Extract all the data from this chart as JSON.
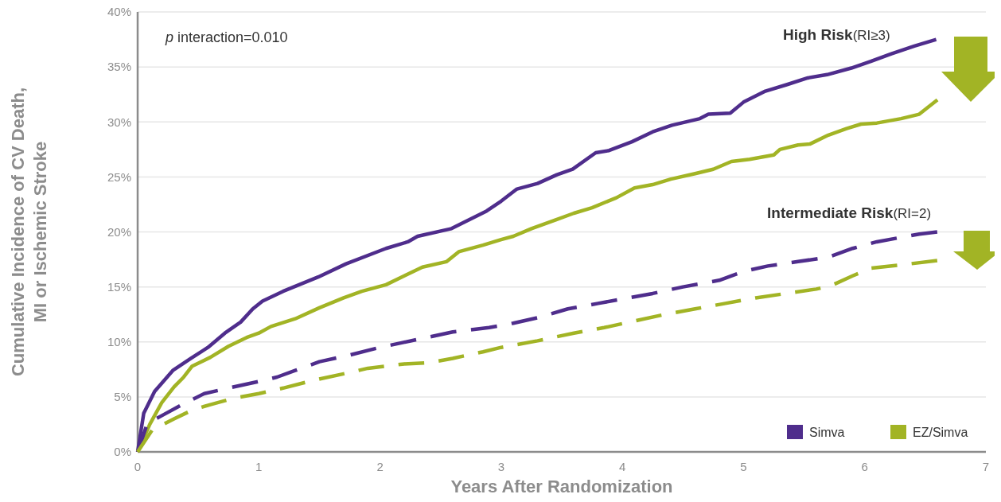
{
  "chart_data": {
    "type": "line",
    "xlabel": "Years After Randomization",
    "ylabel": "Cumulative Incidence of CV Death,\nMI or Ischemic Stroke",
    "xlim": [
      0,
      7
    ],
    "xticks": [
      0,
      1,
      2,
      3,
      4,
      5,
      6,
      7
    ],
    "ylim": [
      0,
      40
    ],
    "yticks": [
      {
        "value": 0,
        "label": "0%"
      },
      {
        "value": 5,
        "label": "5%"
      },
      {
        "value": 10,
        "label": "10%"
      },
      {
        "value": 15,
        "label": "15%"
      },
      {
        "value": 20,
        "label": "20%"
      },
      {
        "value": 25,
        "label": "25%"
      },
      {
        "value": 30,
        "label": "30%"
      },
      {
        "value": 35,
        "label": "35%"
      },
      {
        "value": 40,
        "label": "40%"
      }
    ],
    "grid": "y",
    "legend": "bottom right",
    "annotations": [
      "p interaction=0.010",
      "High Risk(RI≥3)",
      "Intermediate Risk(RI=2)"
    ],
    "series": [
      {
        "name": "Simva",
        "color": "#4f2d8c",
        "line_style": "solid",
        "x": [
          0,
          0.05,
          0.14,
          0.29,
          0.44,
          0.58,
          0.72,
          0.85,
          0.95,
          1.03,
          1.2,
          1.49,
          1.72,
          2.05,
          2.23,
          2.31,
          2.59,
          2.88,
          3.0,
          3.13,
          3.3,
          3.46,
          3.59,
          3.78,
          3.89,
          4.08,
          4.25,
          4.41,
          4.64,
          4.71,
          4.89,
          5.0,
          5.18,
          5.36,
          5.53,
          5.69,
          5.89,
          6.05,
          6.22,
          6.41,
          6.59
        ],
        "values": [
          0,
          3.5,
          5.5,
          7.4,
          8.5,
          9.5,
          10.8,
          11.8,
          13,
          13.7,
          14.6,
          15.9,
          17.1,
          18.5,
          19.1,
          19.6,
          20.3,
          21.9,
          22.8,
          23.9,
          24.4,
          25.2,
          25.7,
          27.2,
          27.4,
          28.2,
          29.1,
          29.7,
          30.3,
          30.7,
          30.8,
          31.8,
          32.8,
          33.4,
          34.0,
          34.3,
          34.9,
          35.5,
          36.2,
          36.9,
          37.5
        ]
      },
      {
        "name": "EZ/Simva",
        "color": "#a2b425",
        "line_style": "solid",
        "x": [
          0,
          0.1,
          0.2,
          0.3,
          0.38,
          0.45,
          0.6,
          0.75,
          0.9,
          1.0,
          1.1,
          1.3,
          1.5,
          1.7,
          1.85,
          2.05,
          2.2,
          2.35,
          2.55,
          2.65,
          2.85,
          3.0,
          3.1,
          3.25,
          3.45,
          3.6,
          3.75,
          3.95,
          4.1,
          4.25,
          4.4,
          4.6,
          4.75,
          4.9,
          5.05,
          5.25,
          5.3,
          5.45,
          5.55,
          5.7,
          5.85,
          5.97,
          6.1,
          6.3,
          6.45,
          6.6
        ],
        "values": [
          0,
          2.5,
          4.5,
          5.9,
          6.8,
          7.8,
          8.6,
          9.6,
          10.4,
          10.8,
          11.4,
          12.1,
          13.1,
          14.0,
          14.6,
          15.2,
          16.0,
          16.8,
          17.3,
          18.2,
          18.8,
          19.3,
          19.6,
          20.3,
          21.1,
          21.7,
          22.2,
          23.1,
          24.0,
          24.3,
          24.8,
          25.3,
          25.7,
          26.4,
          26.6,
          27.0,
          27.5,
          27.9,
          28.0,
          28.8,
          29.4,
          29.8,
          29.9,
          30.3,
          30.7,
          32.0
        ]
      },
      {
        "color": "#4f2d8c",
        "line_style": "dashed",
        "x": [
          0,
          0.08,
          0.2,
          0.35,
          0.55,
          0.75,
          1.0,
          1.15,
          1.3,
          1.5,
          1.75,
          2.0,
          2.3,
          2.6,
          2.9,
          3.1,
          3.3,
          3.55,
          3.8,
          4.0,
          4.25,
          4.5,
          4.8,
          5.0,
          5.2,
          5.45,
          5.7,
          5.9,
          6.1,
          6.3,
          6.45,
          6.6
        ],
        "values": [
          0,
          2.6,
          3.3,
          4.2,
          5.3,
          5.8,
          6.4,
          6.8,
          7.4,
          8.2,
          8.8,
          9.5,
          10.2,
          10.9,
          11.3,
          11.7,
          12.2,
          13.0,
          13.5,
          13.9,
          14.4,
          15.0,
          15.6,
          16.4,
          16.9,
          17.3,
          17.7,
          18.5,
          19.1,
          19.5,
          19.8,
          20.0
        ]
      },
      {
        "color": "#a2b425",
        "line_style": "dashed",
        "x": [
          0,
          0.12,
          0.3,
          0.45,
          0.6,
          0.8,
          1.0,
          1.2,
          1.45,
          1.7,
          1.9,
          2.2,
          2.4,
          2.6,
          2.85,
          3.0,
          3.3,
          3.6,
          3.85,
          4.1,
          4.35,
          4.6,
          4.85,
          5.1,
          5.35,
          5.6,
          5.72,
          5.9,
          6.05,
          6.3,
          6.6
        ],
        "values": [
          0,
          2.0,
          3.0,
          3.8,
          4.3,
          4.9,
          5.3,
          5.8,
          6.5,
          7.1,
          7.6,
          8.0,
          8.1,
          8.5,
          9.1,
          9.5,
          10.1,
          10.8,
          11.3,
          11.9,
          12.5,
          13.0,
          13.5,
          14.0,
          14.4,
          14.8,
          15.1,
          16.0,
          16.7,
          17.0,
          17.4
        ]
      }
    ]
  }
}
